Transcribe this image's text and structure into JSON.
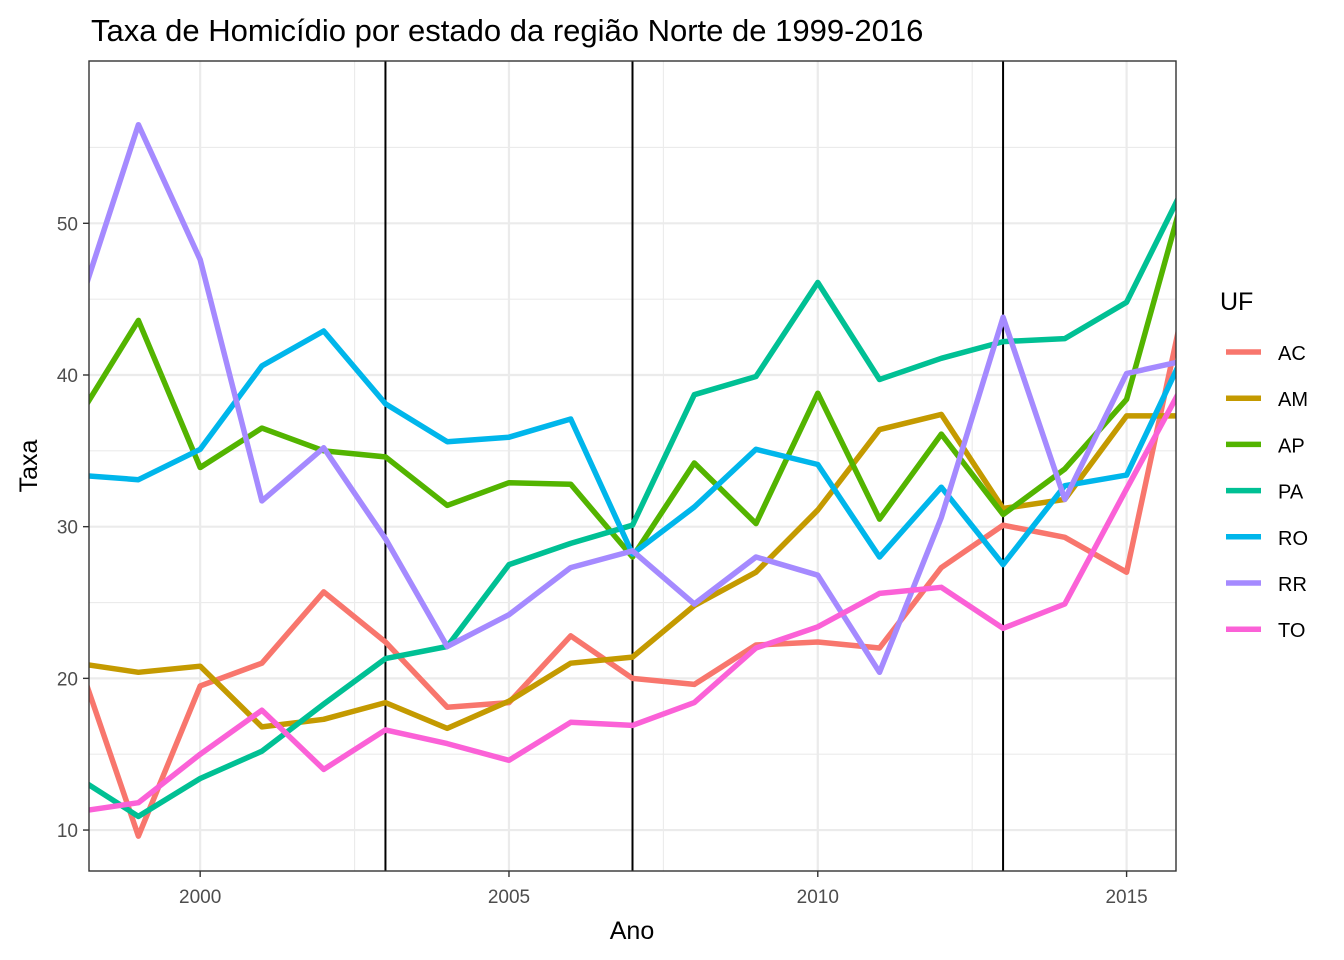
{
  "chart_data": {
    "type": "line",
    "title": "Taxa de Homicídio por estado da região Norte de 1999-2016",
    "xlabel": "Ano",
    "ylabel": "Taxa",
    "xlim": [
      1998.2,
      2015.8
    ],
    "ylim": [
      7.3,
      60.7
    ],
    "x_ticks": [
      2000,
      2005,
      2010,
      2015
    ],
    "x_tick_labels": [
      "2000",
      "2005",
      "2010",
      "2015"
    ],
    "y_ticks": [
      10,
      20,
      30,
      40,
      50
    ],
    "y_tick_labels": [
      "10",
      "20",
      "30",
      "40",
      "50"
    ],
    "grid": true,
    "theme": "bw",
    "vertical_reference_lines": [
      2003,
      2007,
      2013
    ],
    "legend_title": "UF",
    "legend_position": "right",
    "x": [
      1998,
      1999,
      2000,
      2001,
      2002,
      2003,
      2004,
      2005,
      2006,
      2007,
      2008,
      2009,
      2010,
      2011,
      2012,
      2013,
      2014,
      2015,
      2016
    ],
    "series": [
      {
        "name": "AC",
        "color": "#F8766D",
        "values": [
          21.5,
          9.6,
          19.5,
          21.0,
          25.7,
          22.4,
          18.1,
          18.4,
          22.8,
          20.0,
          19.6,
          22.2,
          22.4,
          22.0,
          27.3,
          30.1,
          29.3,
          27.0,
          46.0
        ]
      },
      {
        "name": "AM",
        "color": "#C49A00",
        "values": [
          21.0,
          20.4,
          20.8,
          16.8,
          17.3,
          18.4,
          16.7,
          18.5,
          21.0,
          21.4,
          24.8,
          27.0,
          31.1,
          36.4,
          37.4,
          31.2,
          31.8,
          37.3,
          37.3
        ]
      },
      {
        "name": "AP",
        "color": "#53B400",
        "values": [
          37.0,
          43.6,
          33.9,
          36.5,
          35.0,
          34.6,
          31.4,
          32.9,
          32.8,
          28.0,
          34.2,
          30.2,
          38.8,
          30.5,
          36.1,
          30.8,
          33.8,
          38.4,
          53.0
        ]
      },
      {
        "name": "PA",
        "color": "#00C094",
        "values": [
          13.5,
          10.9,
          13.4,
          15.2,
          18.3,
          21.3,
          22.1,
          27.5,
          28.9,
          30.1,
          38.7,
          39.9,
          46.1,
          39.7,
          41.1,
          42.2,
          42.4,
          44.8,
          53.0
        ]
      },
      {
        "name": "RO",
        "color": "#00B6EB",
        "values": [
          33.4,
          33.1,
          35.1,
          40.6,
          42.9,
          38.1,
          35.6,
          35.9,
          37.1,
          28.2,
          31.3,
          35.1,
          34.1,
          28.0,
          32.6,
          27.5,
          32.7,
          33.4,
          42.0
        ]
      },
      {
        "name": "RR",
        "color": "#A58AFF",
        "values": [
          44.0,
          56.5,
          47.6,
          31.7,
          35.2,
          29.2,
          22.1,
          24.2,
          27.3,
          28.4,
          24.9,
          28.0,
          26.8,
          20.4,
          30.6,
          43.8,
          31.8,
          40.1,
          41.0
        ]
      },
      {
        "name": "TO",
        "color": "#FB61D7",
        "values": [
          11.2,
          11.8,
          15.0,
          17.9,
          14.0,
          16.6,
          15.7,
          14.6,
          17.1,
          16.9,
          18.4,
          22.0,
          23.4,
          25.6,
          26.0,
          23.3,
          24.9,
          32.5,
          40.0
        ]
      }
    ]
  }
}
